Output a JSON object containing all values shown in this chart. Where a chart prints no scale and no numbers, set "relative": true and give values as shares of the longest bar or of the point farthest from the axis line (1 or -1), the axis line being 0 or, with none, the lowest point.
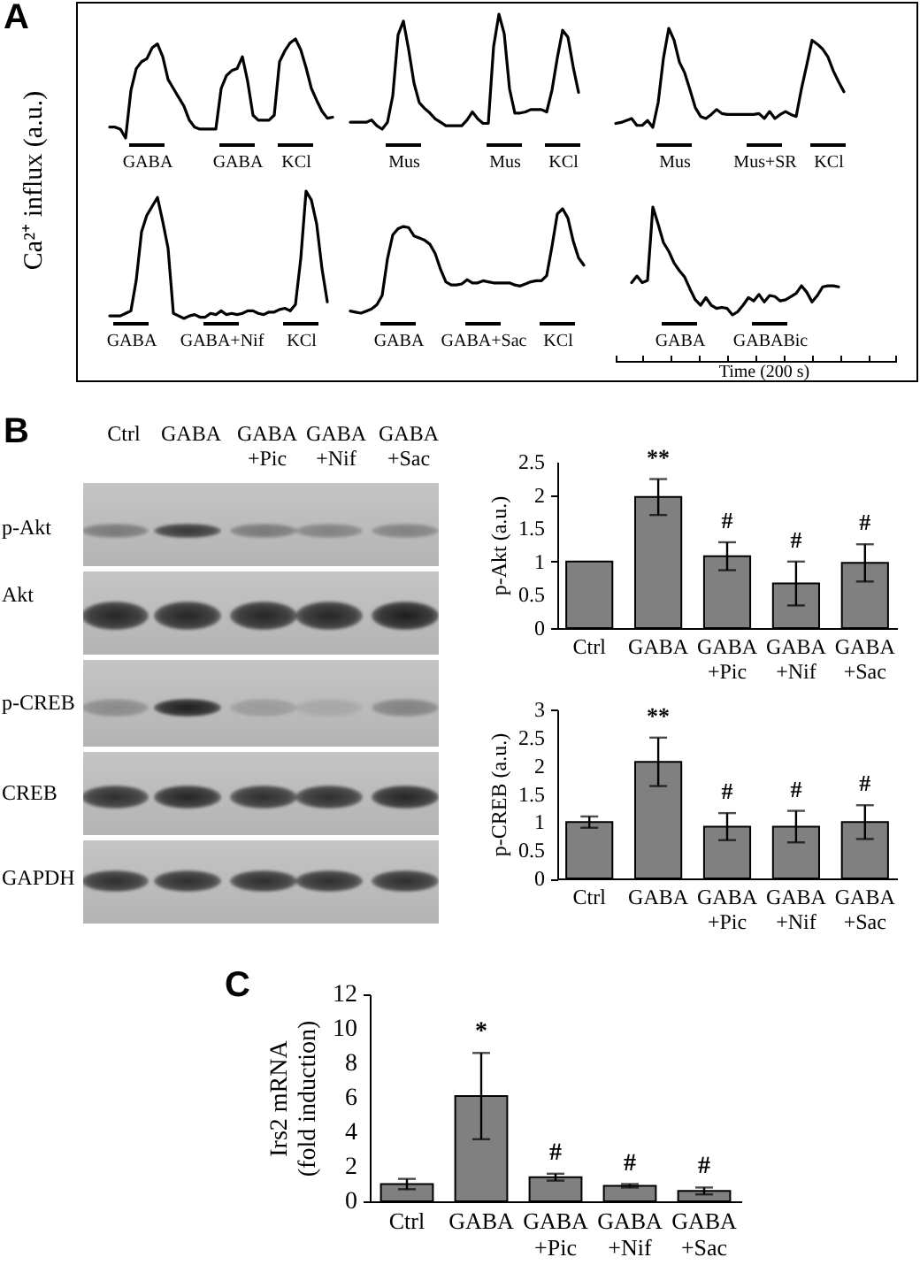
{
  "chart_data": [
    {
      "type": "line",
      "title": "A",
      "ylabel": "Ca²⁺ influx (a.u.)",
      "relative": true,
      "color": "#000000",
      "categories": [
        null,
        null,
        null,
        null,
        null,
        null,
        null,
        "GABA",
        null,
        null,
        null,
        null,
        null,
        null,
        null,
        null,
        null,
        null,
        null,
        null,
        null,
        null,
        null,
        null,
        "GABA",
        null,
        null,
        null,
        null,
        null,
        null,
        null,
        null,
        null,
        null,
        "KCl",
        null,
        null,
        null,
        null,
        null,
        null,
        null
      ],
      "values": [
        0.11,
        0.11,
        0.09,
        0,
        0.48,
        0.7,
        0.77,
        0.8,
        0.91,
        0.95,
        0.82,
        0.59,
        0.5,
        0.41,
        0.32,
        0.18,
        0.11,
        0.09,
        0.09,
        0.09,
        0.09,
        0.5,
        0.63,
        0.68,
        0.7,
        0.82,
        0.57,
        0.23,
        0.18,
        0.18,
        0.18,
        0.23,
        0.77,
        0.88,
        0.96,
        1,
        0.89,
        0.71,
        0.5,
        0.38,
        0.27,
        0.2,
        0.21
      ]
    },
    {
      "type": "line",
      "relative": true,
      "color": "#000000",
      "categories": [
        null,
        null,
        null,
        null,
        null,
        null,
        null,
        null,
        null,
        null,
        "Mus",
        null,
        null,
        null,
        null,
        null,
        null,
        null,
        null,
        null,
        null,
        null,
        null,
        null,
        null,
        null,
        null,
        null,
        null,
        "Mus",
        null,
        null,
        null,
        null,
        null,
        null,
        null,
        null,
        null,
        null,
        "KCl",
        null,
        null,
        null
      ],
      "values": [
        0.06,
        0.06,
        0.06,
        0.06,
        0.08,
        0.03,
        0,
        0.06,
        0.29,
        0.82,
        0.94,
        0.69,
        0.4,
        0.23,
        0.18,
        0.14,
        0.09,
        0.06,
        0.03,
        0.03,
        0.03,
        0.03,
        0.08,
        0.15,
        0.09,
        0.05,
        0.05,
        0.72,
        1,
        0.83,
        0.35,
        0.14,
        0.14,
        0.15,
        0.17,
        0.17,
        0.17,
        0.15,
        0.34,
        0.62,
        0.86,
        0.8,
        0.54,
        0.32
      ]
    },
    {
      "type": "line",
      "relative": true,
      "color": "#000000",
      "categories": [
        null,
        null,
        null,
        null,
        null,
        null,
        null,
        null,
        null,
        null,
        null,
        "Mus",
        null,
        null,
        null,
        null,
        null,
        null,
        null,
        null,
        null,
        null,
        null,
        null,
        null,
        null,
        null,
        null,
        "Mus+SR",
        null,
        null,
        null,
        null,
        null,
        null,
        null,
        null,
        null,
        null,
        null,
        "KCl",
        null,
        null,
        null
      ],
      "values": [
        0.04,
        0.05,
        0.07,
        0.09,
        0.02,
        0.02,
        0.07,
        0,
        0.25,
        0.7,
        1,
        0.88,
        0.66,
        0.55,
        0.38,
        0.2,
        0.11,
        0.09,
        0.13,
        0.18,
        0.14,
        0.13,
        0.13,
        0.13,
        0.13,
        0.13,
        0.13,
        0.14,
        0.09,
        0.16,
        0.09,
        0.13,
        0.16,
        0.13,
        0.11,
        0.39,
        0.63,
        0.88,
        0.84,
        0.79,
        0.71,
        0.57,
        0.46,
        0.36
      ]
    },
    {
      "type": "line",
      "relative": true,
      "color": "#000000",
      "categories": [
        null,
        null,
        null,
        null,
        "GABA",
        null,
        null,
        null,
        null,
        null,
        null,
        null,
        null,
        null,
        null,
        null,
        null,
        null,
        null,
        null,
        null,
        "GABA+Nif",
        null,
        null,
        null,
        null,
        null,
        null,
        null,
        null,
        null,
        null,
        null,
        null,
        null,
        null,
        "KCl",
        null,
        null,
        null,
        null,
        null
      ],
      "values": [
        0.02,
        0.02,
        0.02,
        0.04,
        0.06,
        0.3,
        0.68,
        0.81,
        0.88,
        0.95,
        0.76,
        0.55,
        0.04,
        0.02,
        0,
        0.02,
        0.03,
        0.01,
        0.01,
        0.04,
        0.03,
        0.06,
        0.03,
        0.04,
        0.03,
        0.04,
        0.06,
        0.06,
        0.04,
        0.03,
        0.05,
        0.05,
        0.07,
        0.08,
        0.06,
        0.11,
        0.47,
        1,
        0.93,
        0.74,
        0.39,
        0.13
      ]
    },
    {
      "type": "line",
      "relative": true,
      "color": "#000000",
      "categories": [
        null,
        null,
        null,
        null,
        null,
        null,
        null,
        null,
        null,
        "GABA",
        null,
        null,
        null,
        null,
        null,
        null,
        null,
        null,
        null,
        null,
        null,
        null,
        null,
        null,
        null,
        "GABA+Sac",
        null,
        null,
        null,
        null,
        null,
        null,
        null,
        null,
        null,
        null,
        null,
        null,
        null,
        "KCl",
        null,
        null,
        null,
        null,
        null
      ],
      "values": [
        0.02,
        0.01,
        0,
        0.02,
        0.04,
        0.08,
        0.17,
        0.52,
        0.75,
        0.81,
        0.83,
        0.82,
        0.74,
        0.72,
        0.7,
        0.66,
        0.57,
        0.42,
        0.3,
        0.27,
        0.27,
        0.28,
        0.32,
        0.29,
        0.29,
        0.31,
        0.3,
        0.29,
        0.29,
        0.29,
        0.29,
        0.27,
        0.26,
        0.28,
        0.3,
        0.31,
        0.31,
        0.36,
        0.64,
        0.95,
        1,
        0.91,
        0.69,
        0.53,
        0.46
      ]
    },
    {
      "type": "line",
      "relative": true,
      "color": "#000000",
      "xlabel": "Time (200 s)",
      "categories": [
        null,
        null,
        null,
        null,
        null,
        null,
        null,
        null,
        null,
        "GABA",
        null,
        null,
        null,
        null,
        null,
        null,
        null,
        null,
        null,
        null,
        null,
        null,
        null,
        null,
        null,
        null,
        "GABABic",
        null,
        null,
        null,
        null,
        null,
        null,
        null,
        null,
        null,
        null,
        null,
        null,
        null
      ],
      "values": [
        0.3,
        0.36,
        0.3,
        0.32,
        1,
        0.84,
        0.67,
        0.59,
        0.48,
        0.41,
        0.35,
        0.24,
        0.14,
        0.09,
        0.16,
        0.09,
        0.06,
        0.07,
        0.06,
        0,
        0.03,
        0.09,
        0.16,
        0.13,
        0.19,
        0.12,
        0.18,
        0.17,
        0.13,
        0.14,
        0.17,
        0.2,
        0.27,
        0.21,
        0.12,
        0.18,
        0.26,
        0.27,
        0.27,
        0.26
      ]
    },
    {
      "type": "other",
      "title": "B",
      "categories": [
        "Ctrl",
        "GABA",
        "GABA +Pic",
        "GABA +Nif",
        "GABA +Sac"
      ],
      "y_categories": [
        "p-Akt",
        "Akt",
        "p-CREB",
        "CREB",
        "GAPDH"
      ]
    },
    {
      "type": "bar",
      "ylabel": "p-Akt (a.u.)",
      "categories": [
        "Ctrl",
        "GABA",
        "GABA +Pic",
        "GABA +Nif",
        "GABA +Sac"
      ],
      "values": [
        1,
        1.97,
        1.08,
        0.67,
        0.98
      ],
      "errors": [
        null,
        0.27,
        0.21,
        0.33,
        0.28
      ],
      "color": "#808080",
      "ylim": [
        0,
        2.5
      ],
      "yticks": [
        0,
        0.5,
        1,
        1.5,
        2,
        2.5
      ],
      "annotations": [
        "**",
        "#",
        "#",
        "#"
      ]
    },
    {
      "type": "bar",
      "ylabel": "p-CREB (a.u.)",
      "categories": [
        "Ctrl",
        "GABA",
        "GABA +Pic",
        "GABA +Nif",
        "GABA +Sac"
      ],
      "values": [
        1,
        2.07,
        0.92,
        0.92,
        1.0
      ],
      "errors": [
        0.1,
        0.43,
        0.24,
        0.28,
        0.3
      ],
      "color": "#808080",
      "ylim": [
        0,
        3
      ],
      "yticks": [
        0,
        0.5,
        1,
        1.5,
        2,
        2.5,
        3
      ],
      "annotations": [
        "**",
        "#",
        "#",
        "#"
      ]
    },
    {
      "type": "bar",
      "title": "C",
      "ylabel": "Irs2 mRNA (fold induction)",
      "categories": [
        "Ctrl",
        "GABA",
        "GABA +Pic",
        "GABA +Nif",
        "GABA +Sac"
      ],
      "values": [
        1,
        6.1,
        1.4,
        0.9,
        0.6
      ],
      "errors": [
        0.3,
        2.5,
        0.2,
        0.1,
        0.2
      ],
      "color": "#808080",
      "ylim": [
        0,
        12
      ],
      "yticks": [
        0,
        2,
        4,
        6,
        8,
        10,
        12
      ],
      "annotations": [
        "*",
        "#",
        "#",
        "#"
      ]
    }
  ]
}
